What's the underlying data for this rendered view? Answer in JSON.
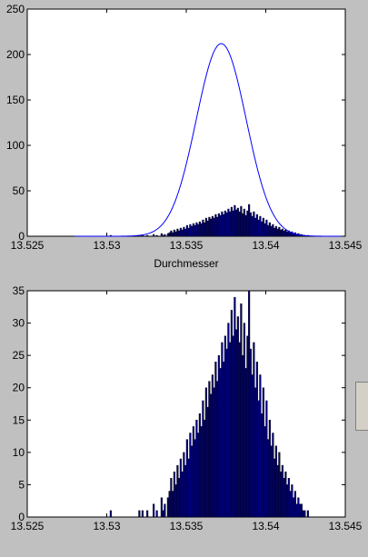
{
  "chart_data": [
    {
      "type": "bar",
      "overlay": "normal-fit-line",
      "title": "",
      "xlabel": "Durchmesser",
      "ylabel": "",
      "xlim": [
        13.525,
        13.545
      ],
      "ylim": [
        0,
        250
      ],
      "xticks": [
        "13.525",
        "13.53",
        "13.535",
        "13.54",
        "13.545"
      ],
      "yticks": [
        "0",
        "50",
        "100",
        "150",
        "200",
        "250"
      ],
      "grid": false,
      "bar_color": "#000080",
      "line_color": "#0000ff",
      "fit": {
        "mean": 13.5372,
        "sigma": 0.00157,
        "peak": 212
      },
      "x_start": 13.5302,
      "bin_width": 0.0001,
      "values": [
        1,
        0,
        0,
        0,
        0,
        0,
        0,
        0,
        0,
        0,
        0,
        0,
        0,
        0,
        0,
        0,
        0,
        0,
        1,
        0,
        1,
        0,
        0,
        1,
        0,
        0,
        0,
        2,
        0,
        1,
        0,
        0,
        3,
        1,
        2,
        0,
        3,
        4,
        6,
        4,
        7,
        5,
        8,
        6,
        9,
        7,
        10,
        8,
        12,
        9,
        13,
        11,
        14,
        12,
        15,
        13,
        16,
        14,
        18,
        15,
        20,
        17,
        21,
        19,
        22,
        20,
        24,
        21,
        25,
        23,
        27,
        24,
        28,
        26,
        30,
        27,
        32,
        28,
        34,
        29,
        31,
        27,
        33,
        25,
        30,
        23,
        28,
        35,
        26,
        22,
        27,
        20,
        24,
        18,
        22,
        16,
        20,
        14,
        18,
        12,
        15,
        11,
        13,
        9,
        11,
        8,
        10,
        7,
        8,
        6,
        7,
        5,
        6,
        4,
        5,
        3,
        4,
        2,
        3,
        2,
        2,
        1,
        1,
        0,
        1,
        0,
        0
      ]
    },
    {
      "type": "bar",
      "title": "",
      "xlabel": "",
      "ylabel": "",
      "xlim": [
        13.525,
        13.545
      ],
      "ylim": [
        0,
        35
      ],
      "xticks": [
        "13.525",
        "13.53",
        "13.535",
        "13.54",
        "13.545"
      ],
      "yticks": [
        "0",
        "5",
        "10",
        "15",
        "20",
        "25",
        "30",
        "35"
      ],
      "grid": false,
      "bar_color": "#000080",
      "x_start": 13.5302,
      "bin_width": 0.0001,
      "values": [
        1,
        0,
        0,
        0,
        0,
        0,
        0,
        0,
        0,
        0,
        0,
        0,
        0,
        0,
        0,
        0,
        0,
        0,
        1,
        0,
        1,
        0,
        0,
        1,
        0,
        0,
        0,
        2,
        0,
        1,
        0,
        0,
        3,
        1,
        2,
        0,
        3,
        4,
        6,
        4,
        7,
        5,
        8,
        6,
        9,
        7,
        10,
        8,
        12,
        9,
        13,
        11,
        14,
        12,
        15,
        13,
        16,
        14,
        18,
        15,
        20,
        17,
        21,
        19,
        22,
        20,
        24,
        21,
        25,
        23,
        27,
        24,
        28,
        26,
        30,
        27,
        32,
        28,
        34,
        29,
        31,
        27,
        33,
        25,
        30,
        23,
        28,
        35,
        26,
        22,
        27,
        20,
        24,
        18,
        22,
        16,
        20,
        14,
        18,
        12,
        15,
        11,
        13,
        9,
        11,
        8,
        10,
        7,
        8,
        6,
        7,
        5,
        6,
        4,
        5,
        3,
        4,
        2,
        3,
        2,
        2,
        1,
        1,
        0,
        1,
        0,
        0
      ]
    }
  ]
}
